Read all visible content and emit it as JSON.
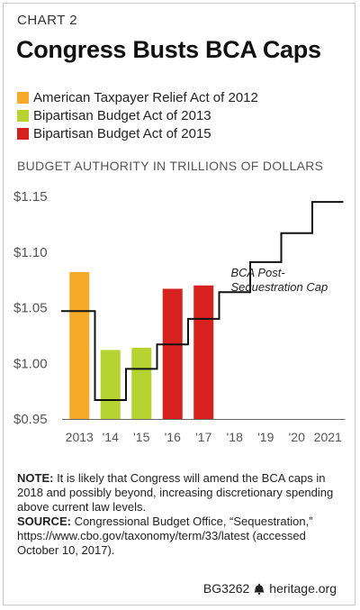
{
  "header": {
    "eyebrow": "CHART 2",
    "title": "Congress Busts BCA Caps"
  },
  "legend": [
    {
      "label": "American Taxpayer Relief Act of 2012",
      "color": "#f7a928"
    },
    {
      "label": "Bipartisan Budget Act of 2013",
      "color": "#b7d332"
    },
    {
      "label": "Bipartisan Budget Act of 2015",
      "color": "#d7211f"
    }
  ],
  "subtitle": "BUDGET AUTHORITY IN TRILLIONS OF DOLLARS",
  "chart_data": {
    "type": "bar",
    "categories": [
      "2013",
      "'14",
      "'15",
      "'16",
      "'17",
      "'18",
      "'19",
      "'20",
      "2021"
    ],
    "y_ticks": [
      "$1.15",
      "$1.10",
      "$1.05",
      "$1.00",
      "$0.95"
    ],
    "ylim": [
      0.95,
      1.15
    ],
    "cap_label": "BCA Post-Sequestration Cap",
    "cap_label_lines": [
      "BCA Post-",
      "Sequestration Cap"
    ],
    "cap_steps": [
      {
        "category": "2013",
        "value": 1.047
      },
      {
        "category": "'14",
        "value": 0.967
      },
      {
        "category": "'15",
        "value": 0.995
      },
      {
        "category": "'16",
        "value": 1.017
      },
      {
        "category": "'17",
        "value": 1.04
      },
      {
        "category": "'18",
        "value": 1.064
      },
      {
        "category": "'19",
        "value": 1.091
      },
      {
        "category": "'20",
        "value": 1.117
      },
      {
        "category": "2021",
        "value": 1.145
      }
    ],
    "bars": [
      {
        "category": "2013",
        "value": 1.082,
        "legend": "American Taxpayer Relief Act of 2012",
        "color": "#f7a928"
      },
      {
        "category": "'14",
        "value": 1.012,
        "legend": "Bipartisan Budget Act of 2013",
        "color": "#b7d332"
      },
      {
        "category": "'15",
        "value": 1.014,
        "legend": "Bipartisan Budget Act of 2013",
        "color": "#b7d332"
      },
      {
        "category": "'16",
        "value": 1.067,
        "legend": "Bipartisan Budget Act of 2015",
        "color": "#d7211f"
      },
      {
        "category": "'17",
        "value": 1.07,
        "legend": "Bipartisan Budget Act of 2015",
        "color": "#d7211f"
      }
    ]
  },
  "note": {
    "note_label": "NOTE:",
    "note_text": " It is likely that Congress will amend the BCA caps in 2018 and possibly beyond, increasing discretionary spending above current law levels.",
    "source_label": "SOURCE:",
    "source_text": " Congressional Budget Office, “Sequestration,” https://www.cbo.gov/taxonomy/term/33/latest (accessed October 10, 2017)."
  },
  "footer": {
    "code": "BG3262",
    "site": "heritage.org",
    "icon": "liberty-bell-icon"
  }
}
